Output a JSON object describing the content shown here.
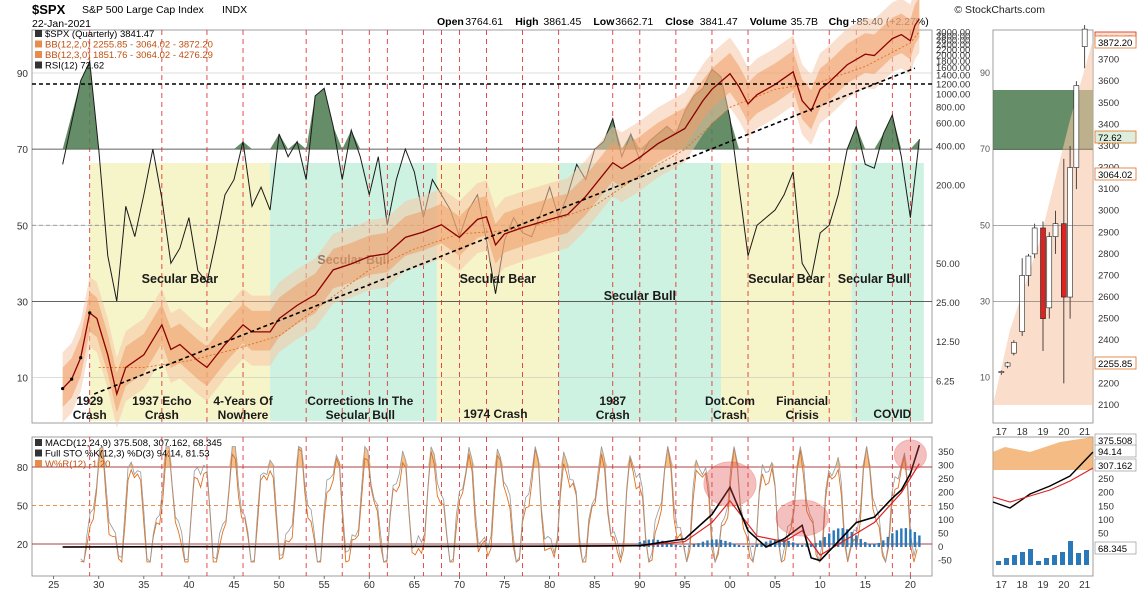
{
  "header": {
    "symbol": "$SPX",
    "name": "S&P 500 Large Cap Index",
    "exchange": "INDX",
    "date": "22-Jan-2021",
    "ohlc": [
      {
        "label": "Open",
        "value": "3764.61"
      },
      {
        "label": "High",
        "value": "3861.45"
      },
      {
        "label": "Low",
        "value": "3662.71"
      },
      {
        "label": "Close",
        "value": "3841.47"
      },
      {
        "label": "Volume",
        "value": "35.7B"
      },
      {
        "label": "Chg",
        "value": "+85.40 (+2.27%)"
      }
    ],
    "watermark": "© StockCharts.com",
    "legend_main": [
      {
        "text": "$SPX (Quarterly) 3841.47",
        "color": "#000000"
      },
      {
        "text": "BB(12,2,0) 2255.85 - 3064.02 - 3872.20",
        "color": "#e07020"
      },
      {
        "text": "BB(12,3,0) 1851.76 - 3064.02 - 4276.29",
        "color": "#e07020"
      },
      {
        "text": "RSI(12) 72.62",
        "color": "#000000"
      }
    ],
    "legend_lower": [
      {
        "text": "MACD(12,24,9) 375.508, 307.162, 68.345",
        "color": "#000000"
      },
      {
        "text": "Full STO %K(12,3) %D(3) 94.14, 81.53",
        "color": "#000000"
      },
      {
        "text": "W%R(12) -1.20",
        "color": "#e07020"
      }
    ]
  },
  "chart_data": [
    {
      "type": "line",
      "title": "$SPX (Quarterly)",
      "x_ticks": [
        "25",
        "30",
        "35",
        "40",
        "45",
        "50",
        "55",
        "60",
        "65",
        "70",
        "75",
        "80",
        "85",
        "90",
        "95",
        "00",
        "05",
        "10",
        "15",
        "20"
      ],
      "rsi_axis": [
        "10",
        "30",
        "50",
        "70",
        "90"
      ],
      "price_axis_log": [
        "6.25",
        "12.50",
        "25.00",
        "50.00",
        "200.00",
        "400.00",
        "600.00",
        "800.00",
        "1000.00",
        "1200.00",
        "1400.00",
        "1600.00",
        "1800.00",
        "2000.00",
        "2200.00",
        "2400.00",
        "2600.00",
        "2800.00",
        "3000.00",
        "3200.00",
        "3400.00",
        "3600.00",
        "3800.00"
      ],
      "price_points": [
        [
          1926,
          5.5
        ],
        [
          1927,
          6.5
        ],
        [
          1928,
          9.5
        ],
        [
          1929,
          21
        ],
        [
          1929.8,
          19
        ],
        [
          1930,
          17
        ],
        [
          1931,
          10
        ],
        [
          1932,
          5
        ],
        [
          1933,
          8
        ],
        [
          1935,
          10
        ],
        [
          1937,
          17
        ],
        [
          1938,
          11
        ],
        [
          1939,
          12
        ],
        [
          1941,
          9
        ],
        [
          1942,
          8
        ],
        [
          1944,
          12
        ],
        [
          1946,
          17
        ],
        [
          1947,
          15
        ],
        [
          1949,
          15
        ],
        [
          1950,
          19
        ],
        [
          1952,
          24
        ],
        [
          1954,
          29
        ],
        [
          1956,
          45
        ],
        [
          1958,
          50
        ],
        [
          1960,
          57
        ],
        [
          1962,
          60
        ],
        [
          1964,
          80
        ],
        [
          1966,
          88
        ],
        [
          1968,
          100
        ],
        [
          1970,
          80
        ],
        [
          1972,
          110
        ],
        [
          1973,
          115
        ],
        [
          1974,
          70
        ],
        [
          1975,
          85
        ],
        [
          1977,
          95
        ],
        [
          1980,
          110
        ],
        [
          1982,
          120
        ],
        [
          1984,
          165
        ],
        [
          1987,
          300
        ],
        [
          1988,
          270
        ],
        [
          1990,
          330
        ],
        [
          1992,
          420
        ],
        [
          1995,
          550
        ],
        [
          1997,
          900
        ],
        [
          1998,
          1100
        ],
        [
          2000,
          1450
        ],
        [
          2001,
          1150
        ],
        [
          2002,
          850
        ],
        [
          2003,
          1000
        ],
        [
          2005,
          1200
        ],
        [
          2007,
          1500
        ],
        [
          2008,
          900
        ],
        [
          2009,
          750
        ],
        [
          2010,
          1100
        ],
        [
          2011,
          1250
        ],
        [
          2013,
          1700
        ],
        [
          2015,
          2050
        ],
        [
          2016,
          2000
        ],
        [
          2018,
          2700
        ],
        [
          2019,
          2900
        ],
        [
          2020,
          2600
        ],
        [
          2020.5,
          3400
        ],
        [
          2021,
          3841.47
        ]
      ],
      "rsi_points": [
        [
          1926,
          66
        ],
        [
          1928,
          88
        ],
        [
          1929,
          93
        ],
        [
          1930,
          70
        ],
        [
          1931,
          42
        ],
        [
          1932,
          30
        ],
        [
          1933,
          55
        ],
        [
          1934,
          47
        ],
        [
          1935,
          58
        ],
        [
          1936,
          70
        ],
        [
          1937,
          57
        ],
        [
          1938,
          40
        ],
        [
          1939,
          44
        ],
        [
          1940,
          52
        ],
        [
          1941,
          38
        ],
        [
          1942,
          35
        ],
        [
          1943,
          46
        ],
        [
          1944,
          58
        ],
        [
          1945,
          62
        ],
        [
          1946,
          72
        ],
        [
          1947,
          55
        ],
        [
          1948,
          60
        ],
        [
          1949,
          54
        ],
        [
          1950,
          74
        ],
        [
          1951,
          68
        ],
        [
          1952,
          72
        ],
        [
          1953,
          62
        ],
        [
          1954,
          84
        ],
        [
          1955,
          86
        ],
        [
          1956,
          76
        ],
        [
          1957,
          62
        ],
        [
          1958,
          75
        ],
        [
          1959,
          68
        ],
        [
          1960,
          58
        ],
        [
          1961,
          68
        ],
        [
          1962,
          50
        ],
        [
          1963,
          62
        ],
        [
          1964,
          70
        ],
        [
          1965,
          64
        ],
        [
          1966,
          52
        ],
        [
          1967,
          62
        ],
        [
          1968,
          58
        ],
        [
          1969,
          54
        ],
        [
          1970,
          47
        ],
        [
          1971,
          54
        ],
        [
          1972,
          58
        ],
        [
          1973,
          46
        ],
        [
          1974,
          32
        ],
        [
          1975,
          46
        ],
        [
          1976,
          52
        ],
        [
          1977,
          48
        ],
        [
          1978,
          47
        ],
        [
          1979,
          53
        ],
        [
          1980,
          60
        ],
        [
          1981,
          52
        ],
        [
          1982,
          58
        ],
        [
          1983,
          66
        ],
        [
          1984,
          62
        ],
        [
          1985,
          70
        ],
        [
          1986,
          72
        ],
        [
          1987,
          78
        ],
        [
          1988,
          68
        ],
        [
          1989,
          74
        ],
        [
          1990,
          67
        ],
        [
          1991,
          72
        ],
        [
          1992,
          74
        ],
        [
          1993,
          76
        ],
        [
          1994,
          74
        ],
        [
          1995,
          80
        ],
        [
          1996,
          84
        ],
        [
          1997,
          86
        ],
        [
          1998,
          91
        ],
        [
          1999,
          89
        ],
        [
          2000,
          78
        ],
        [
          2001,
          60
        ],
        [
          2002,
          42
        ],
        [
          2003,
          50
        ],
        [
          2004,
          52
        ],
        [
          2005,
          54
        ],
        [
          2006,
          58
        ],
        [
          2007,
          64
        ],
        [
          2008,
          40
        ],
        [
          2009,
          36
        ],
        [
          2010,
          48
        ],
        [
          2011,
          50
        ],
        [
          2012,
          58
        ],
        [
          2013,
          70
        ],
        [
          2014,
          76
        ],
        [
          2015,
          66
        ],
        [
          2016,
          65
        ],
        [
          2017,
          74
        ],
        [
          2018,
          79
        ],
        [
          2019,
          68
        ],
        [
          2020,
          52
        ],
        [
          2021,
          72.62
        ]
      ],
      "sma_points": [
        [
          1930,
          8
        ],
        [
          1935,
          8
        ],
        [
          1940,
          9
        ],
        [
          1945,
          11
        ],
        [
          1950,
          14
        ],
        [
          1955,
          25
        ],
        [
          1960,
          45
        ],
        [
          1965,
          65
        ],
        [
          1970,
          85
        ],
        [
          1975,
          90
        ],
        [
          1980,
          105
        ],
        [
          1985,
          140
        ],
        [
          1990,
          240
        ],
        [
          1995,
          380
        ],
        [
          2000,
          800
        ],
        [
          2005,
          1100
        ],
        [
          2010,
          1250
        ],
        [
          2015,
          1650
        ],
        [
          2020,
          2500
        ],
        [
          2021,
          3064.02
        ]
      ],
      "rsi_overbought": 70,
      "rsi_oversold": 30,
      "rsi_mid": 50,
      "periods": [
        {
          "label": "Secular Bear",
          "start": 1929,
          "end": 1949,
          "color": "#f5f2c0"
        },
        {
          "label": "Secular Bull",
          "start": 1949,
          "end": 1967.5,
          "color": "#c6f0dc"
        },
        {
          "label": "Secular Bear",
          "start": 1967.5,
          "end": 1981,
          "color": "#f5f2c0"
        },
        {
          "label": "Secular Bull",
          "start": 1981,
          "end": 1999,
          "color": "#c6f0dc"
        },
        {
          "label": "Secular Bear",
          "start": 1999,
          "end": 2013.5,
          "color": "#f5f2c0"
        },
        {
          "label": "Secular Bull",
          "start": 2013.5,
          "end": 2021.5,
          "color": "#c6f0dc"
        }
      ],
      "event_labels": [
        {
          "text": "1929 Crash",
          "year": 1929
        },
        {
          "text": "1937 Echo Crash",
          "year": 1937
        },
        {
          "text": "4-Years Of Nowhere",
          "year": 1946
        },
        {
          "text": "Corrections In The Secular Bull",
          "year": 1959
        },
        {
          "text": "1974 Crash",
          "year": 1974
        },
        {
          "text": "1987 Crash",
          "year": 1987
        },
        {
          "text": "Dot.Com Crash",
          "year": 2000
        },
        {
          "text": "Financial Crisis",
          "year": 2008
        },
        {
          "text": "COVID",
          "year": 2018
        }
      ],
      "red_dashed_years": [
        1929,
        1937,
        1942,
        1946,
        1953,
        1957,
        1960,
        1962,
        1966,
        1968,
        1970,
        1973,
        1977,
        1981,
        1987,
        1990,
        1994,
        1998,
        2002,
        2007,
        2011,
        2014,
        2018,
        2020
      ]
    },
    {
      "type": "line",
      "title": "MACD(12,24,9) / Full STO / W%R",
      "stoch_axis": [
        "20",
        "50",
        "80"
      ],
      "macd_axis": [
        "-50",
        "0",
        "50",
        "100",
        "150",
        "200",
        "250",
        "300",
        "350"
      ],
      "macd_points": [
        [
          1926,
          0
        ],
        [
          1940,
          1
        ],
        [
          1960,
          2
        ],
        [
          1980,
          3
        ],
        [
          1990,
          5
        ],
        [
          1995,
          30
        ],
        [
          1998,
          120
        ],
        [
          2000,
          220
        ],
        [
          2002,
          60
        ],
        [
          2004,
          0
        ],
        [
          2006,
          30
        ],
        [
          2008,
          80
        ],
        [
          2009,
          -40
        ],
        [
          2010,
          -50
        ],
        [
          2012,
          20
        ],
        [
          2014,
          90
        ],
        [
          2016,
          110
        ],
        [
          2018,
          180
        ],
        [
          2019,
          210
        ],
        [
          2020,
          270
        ],
        [
          2021,
          375.508
        ]
      ],
      "signal_points": [
        [
          1926,
          0
        ],
        [
          1980,
          2
        ],
        [
          1990,
          4
        ],
        [
          1995,
          20
        ],
        [
          1998,
          90
        ],
        [
          2000,
          170
        ],
        [
          2003,
          40
        ],
        [
          2006,
          20
        ],
        [
          2008,
          60
        ],
        [
          2010,
          -30
        ],
        [
          2013,
          30
        ],
        [
          2016,
          90
        ],
        [
          2019,
          200
        ],
        [
          2021,
          307.162
        ]
      ],
      "sto_k": 94.14,
      "sto_d": 81.53,
      "wr": -1.2,
      "highlight_years": [
        2000,
        2008,
        2020
      ]
    },
    {
      "type": "bar",
      "title": "Right inset (Yearly)",
      "x_ticks": [
        "17",
        "18",
        "19",
        "20",
        "21"
      ],
      "price_axis": [
        "2100",
        "2200",
        "2300",
        "2400",
        "2500",
        "2600",
        "2700",
        "2800",
        "2900",
        "3000",
        "3100",
        "3200",
        "3300",
        "3400",
        "3500",
        "3600",
        "3700",
        "3800"
      ],
      "rsi_axis": [
        "10",
        "30",
        "50",
        "70",
        "90"
      ],
      "lower_axis": [
        "50",
        "100",
        "150",
        "200",
        "250",
        "300",
        "350"
      ],
      "price_labels": [
        "3841.47",
        "3872.20",
        "72.62",
        "3064.02",
        "2255.85"
      ],
      "lower_labels": [
        "375.508",
        "94.14",
        "307.162",
        "68.345"
      ],
      "candles": [
        [
          2017.0,
          2250,
          2260,
          2240,
          2255
        ],
        [
          2017.3,
          2280,
          2300,
          2270,
          2295
        ],
        [
          2017.6,
          2340,
          2400,
          2330,
          2390
        ],
        [
          2018.0,
          2440,
          2780,
          2420,
          2700
        ],
        [
          2018.3,
          2700,
          2800,
          2650,
          2790
        ],
        [
          2018.6,
          2800,
          2940,
          2780,
          2920
        ],
        [
          2019.0,
          2920,
          2950,
          2350,
          2500
        ],
        [
          2019.3,
          2550,
          2900,
          2500,
          2880
        ],
        [
          2019.6,
          2880,
          3000,
          2800,
          2940
        ],
        [
          2020.0,
          2940,
          3240,
          2200,
          2600
        ],
        [
          2020.3,
          2600,
          3300,
          2500,
          3200
        ],
        [
          2020.6,
          3200,
          3600,
          3100,
          3580
        ],
        [
          2021.0,
          3760,
          3860,
          3660,
          3841
        ]
      ]
    }
  ]
}
